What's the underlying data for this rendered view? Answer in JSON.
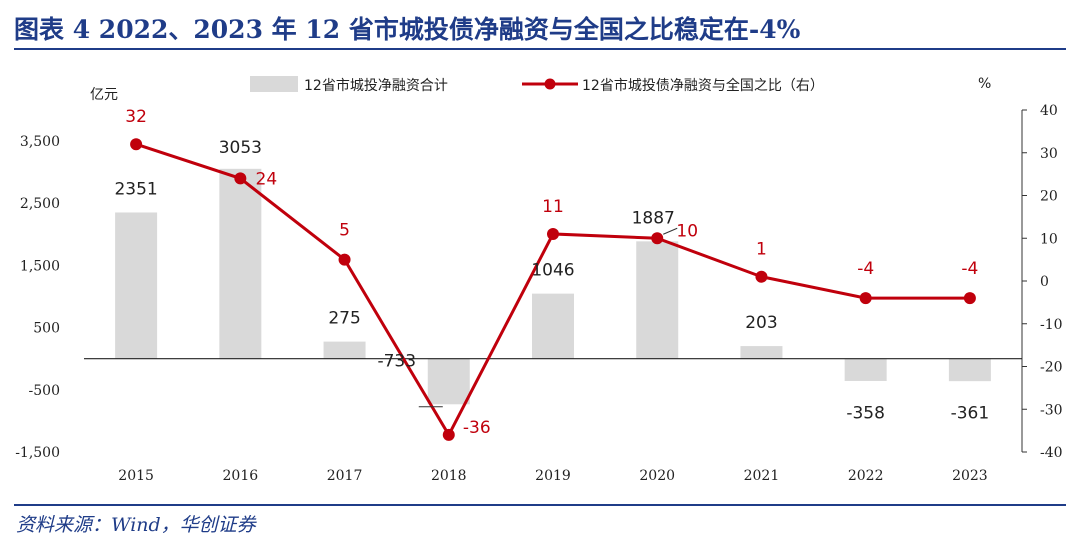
{
  "header": {
    "title": "图表 4   2022、2023 年 12 省市城投债净融资与全国之比稳定在-4%"
  },
  "footer": {
    "source": "资料来源：Wind，华创证券"
  },
  "chart_data": {
    "type": "bar+line",
    "categories": [
      "2015",
      "2016",
      "2017",
      "2018",
      "2019",
      "2020",
      "2021",
      "2022",
      "2023"
    ],
    "series": [
      {
        "name": "12省市城投净融资合计",
        "type": "bar",
        "axis": "left",
        "color": "#d9d9d9",
        "values": [
          2351,
          3053,
          275,
          -733,
          1046,
          1887,
          203,
          -358,
          -361
        ]
      },
      {
        "name": "12省市城投债净融资与全国之比（右）",
        "type": "line",
        "axis": "right",
        "color": "#c0000c",
        "values": [
          32,
          24,
          5,
          -36,
          11,
          10,
          1,
          -4,
          -4
        ]
      }
    ],
    "bar_labels": [
      "2351",
      "3053",
      "275",
      "-733",
      "1046",
      "1887",
      "203",
      "-358",
      "-361"
    ],
    "line_labels": [
      "32",
      "24",
      "5",
      "-36",
      "11",
      "10",
      "1",
      "-4",
      "-4"
    ],
    "left_axis": {
      "unit_label": "亿元",
      "range": [
        -1500,
        4000
      ],
      "tick_values": [
        -1500,
        -500,
        500,
        1500,
        2500,
        3500
      ],
      "tick_labels": [
        "-1,500",
        "-500",
        "500",
        "1,500",
        "2,500",
        "3,500"
      ]
    },
    "right_axis": {
      "unit_label": "%",
      "range": [
        -40,
        40
      ],
      "tick_values": [
        -40,
        -30,
        -20,
        -10,
        0,
        10,
        20,
        30,
        40
      ],
      "tick_labels": [
        "-40",
        "-30",
        "-20",
        "-10",
        "0",
        "10",
        "20",
        "30",
        "40"
      ]
    },
    "legend_position": "top",
    "grid": false
  }
}
